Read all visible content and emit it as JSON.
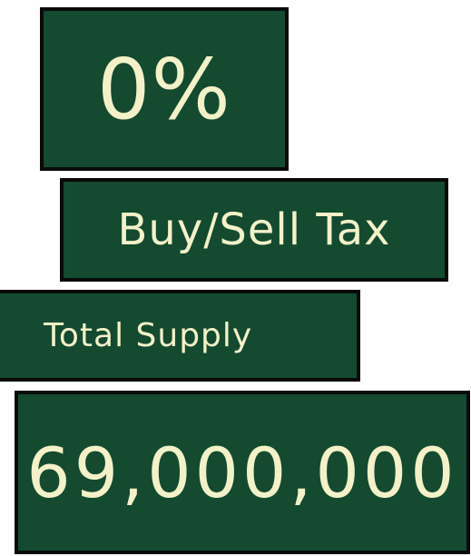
{
  "tax": {
    "value": "0%",
    "label": "Buy/Sell Tax"
  },
  "supply": {
    "label": "Total Supply",
    "value": "69,000,000"
  },
  "colors": {
    "panel_background": "#134a30",
    "panel_border": "#0a0a0a",
    "text": "#f4f1c8"
  }
}
